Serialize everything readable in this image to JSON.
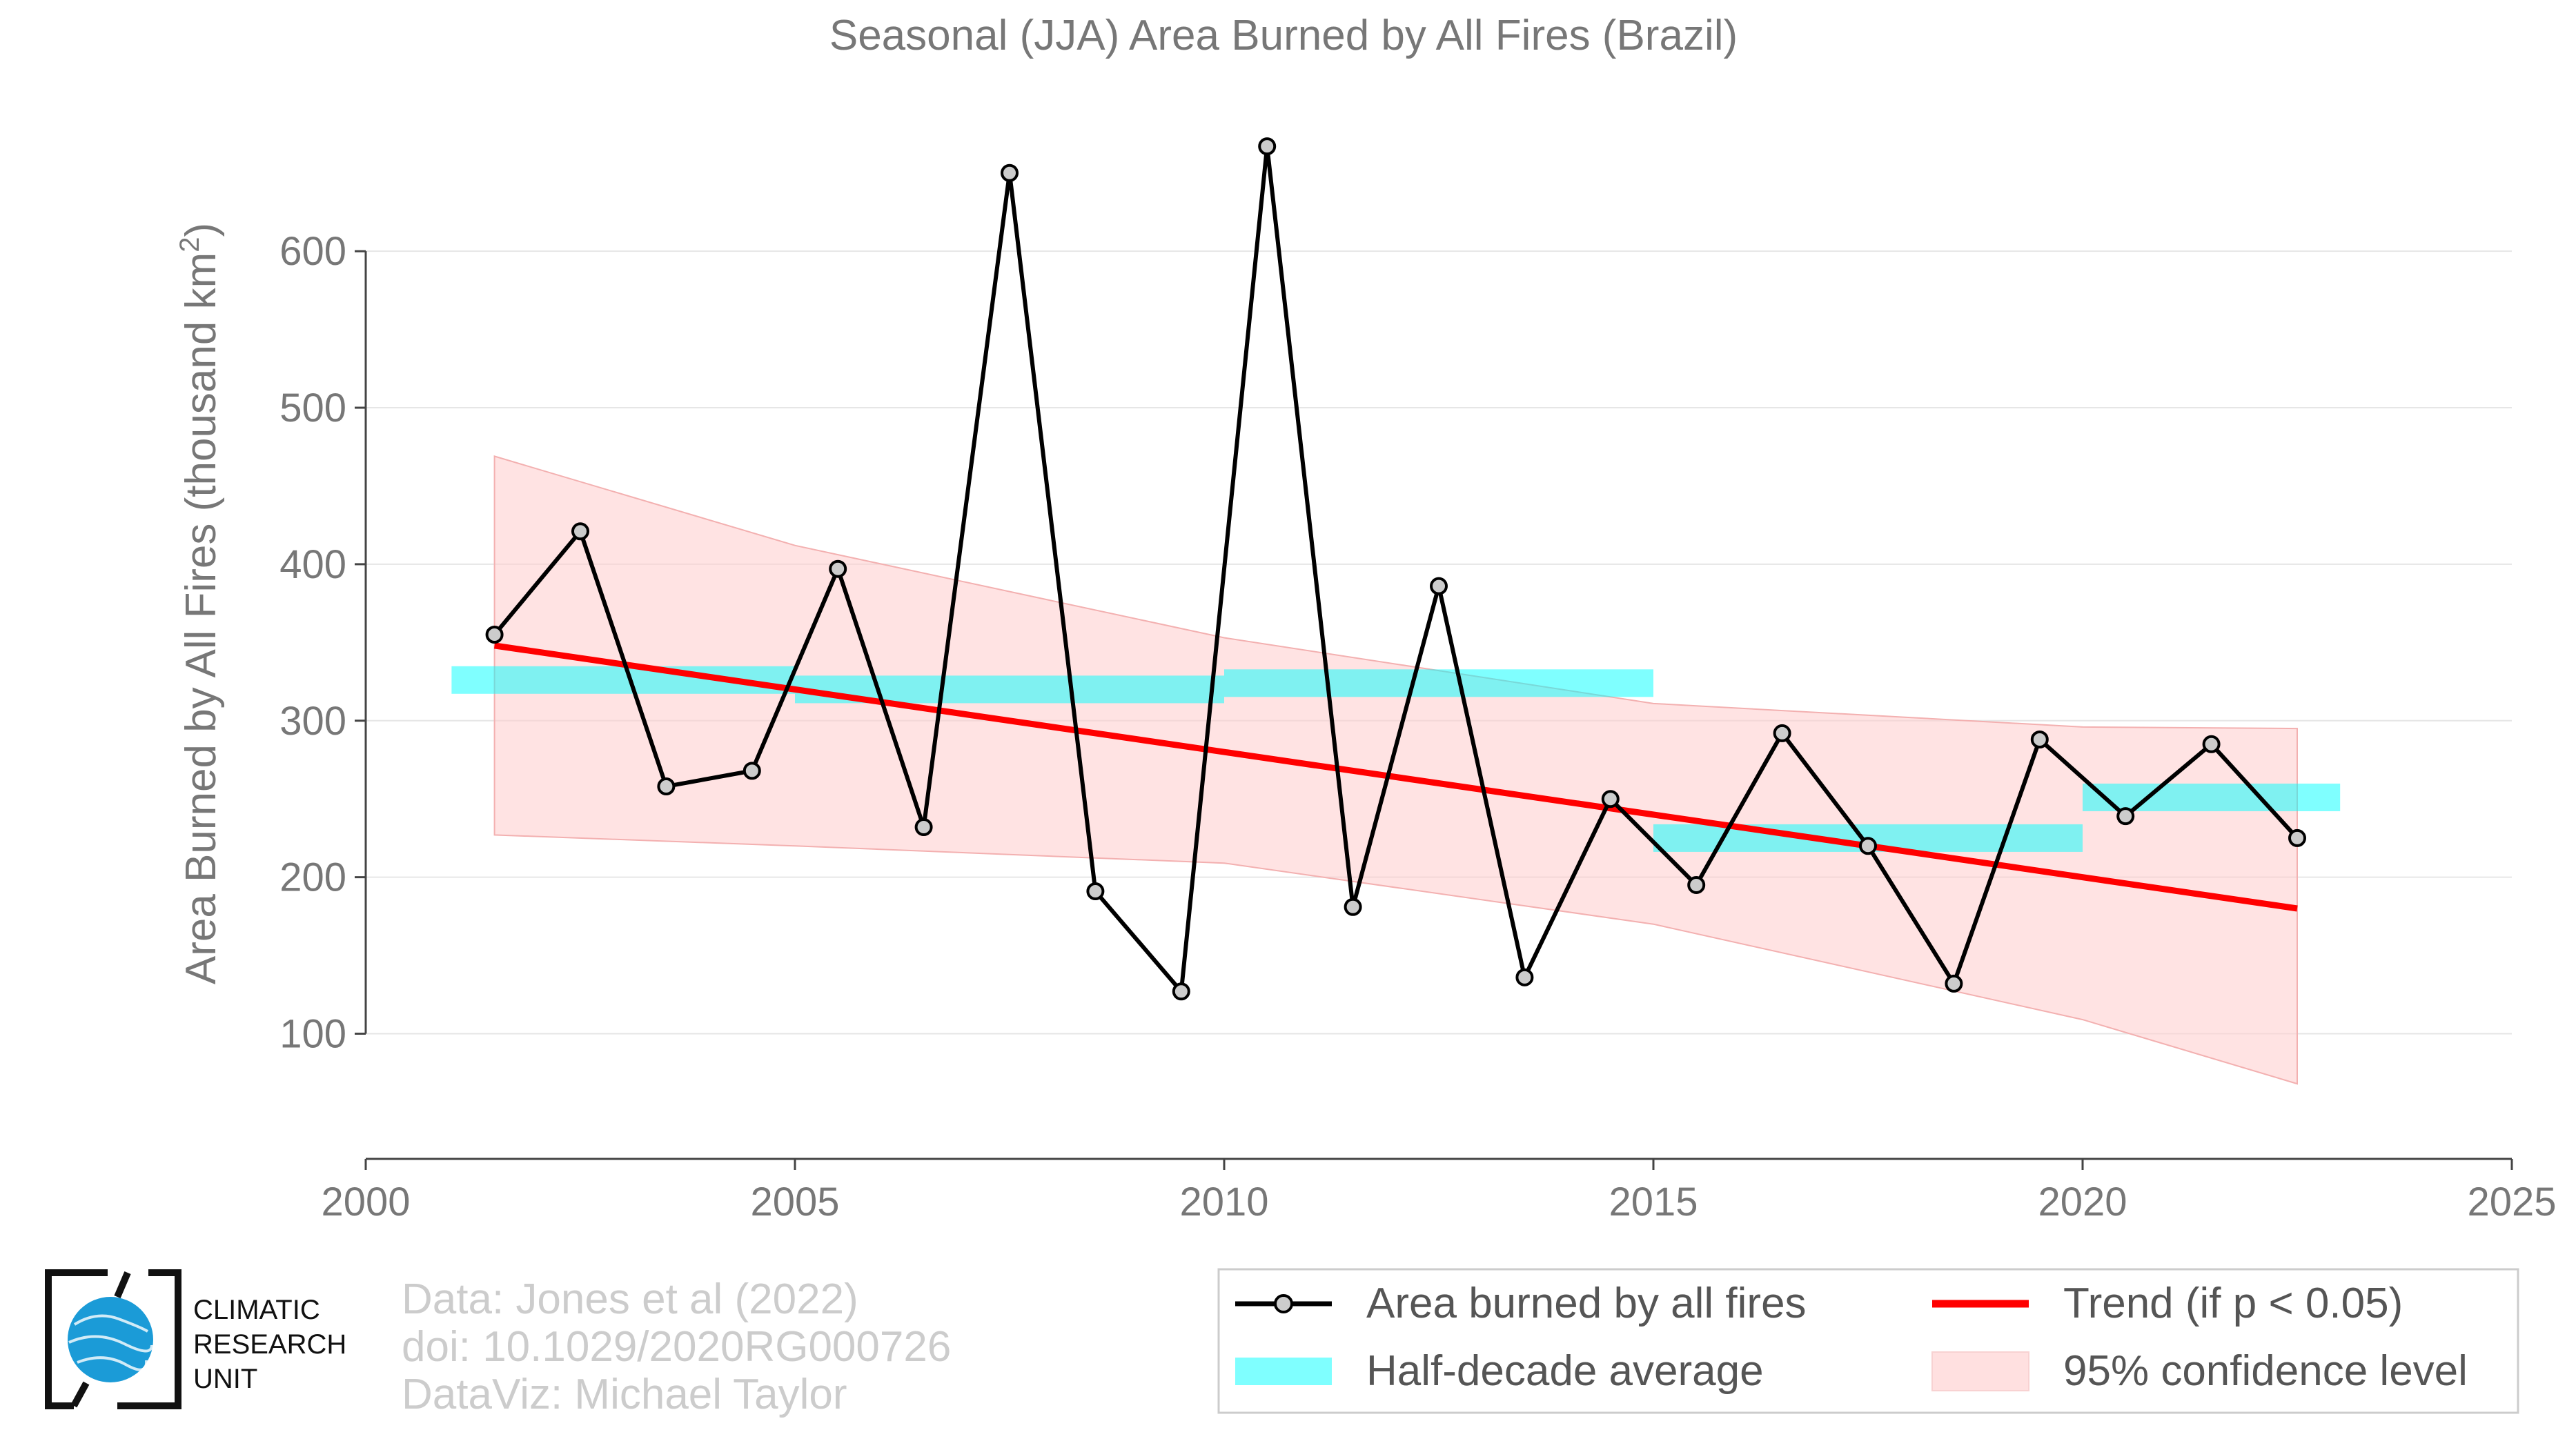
{
  "chart_data": {
    "type": "line",
    "title": "Seasonal (JJA) Area Burned by All Fires (Brazil)",
    "ylabel_main": "Area Burned by All Fires (thousand km",
    "ylabel_sup": "2",
    "ylabel_close": ")",
    "xlim": [
      2000,
      2025
    ],
    "ylim": [
      20,
      690
    ],
    "xticks": [
      2000,
      2005,
      2010,
      2015,
      2020,
      2025
    ],
    "yticks": [
      100,
      200,
      300,
      400,
      500,
      600
    ],
    "grid": "horizontal",
    "series": [
      {
        "name": "Area burned by all fires",
        "color": "#000000",
        "marker_fill": "#cccccc",
        "x": [
          2001.5,
          2002.5,
          2003.5,
          2004.5,
          2005.5,
          2006.5,
          2007.5,
          2008.5,
          2009.5,
          2010.5,
          2011.5,
          2012.5,
          2013.5,
          2014.5,
          2015.5,
          2016.5,
          2017.5,
          2018.5,
          2019.5,
          2020.5,
          2021.5,
          2022.5
        ],
        "y": [
          355,
          421,
          258,
          268,
          397,
          232,
          650,
          191,
          127,
          667,
          181,
          386,
          136,
          250,
          195,
          292,
          220,
          132,
          288,
          239,
          285,
          225
        ]
      }
    ],
    "half_decade_average": {
      "name": "Half-decade average",
      "color": "#00ffff",
      "segments": [
        {
          "x0": 2001,
          "x1": 2005,
          "y": 326
        },
        {
          "x0": 2005,
          "x1": 2010,
          "y": 320
        },
        {
          "x0": 2010,
          "x1": 2015,
          "y": 324
        },
        {
          "x0": 2015,
          "x1": 2020,
          "y": 225
        },
        {
          "x0": 2020,
          "x1": 2023,
          "y": 251
        }
      ]
    },
    "trend": {
      "name": "Trend (if p < 0.05)",
      "color": "#ff0000",
      "x": [
        2001.5,
        2022.5
      ],
      "y": [
        348,
        180
      ]
    },
    "confidence_band": {
      "name": "95% confidence level",
      "color": "#ffcccc",
      "x": [
        2001.5,
        2005,
        2010,
        2015,
        2020,
        2022.5
      ],
      "upper": [
        469,
        412,
        353,
        311,
        296,
        295
      ],
      "lower": [
        227,
        220,
        209,
        170,
        109,
        68
      ]
    },
    "legend_placement": "bottom-right"
  },
  "legend": {
    "items": [
      "Area burned by all fires",
      "Trend (if p < 0.05)",
      "Half-decade average",
      "95% confidence level"
    ]
  },
  "credits": {
    "line1": "Data: Jones et al (2022)",
    "line2": "doi: 10.1029/2020RG000726",
    "line3": "DataViz: Michael Taylor"
  },
  "logo": {
    "line1": "CLIMATIC",
    "line2": "RESEARCH",
    "line3": "UNIT",
    "globe_color": "#1b9bd7"
  }
}
